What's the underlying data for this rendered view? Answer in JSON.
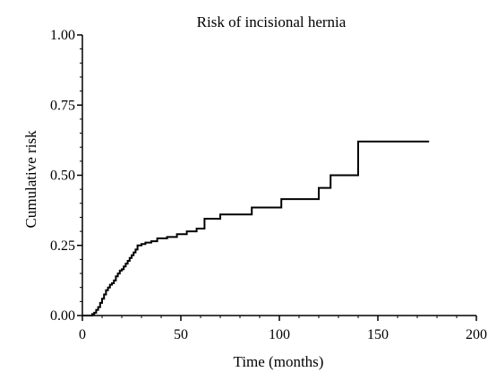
{
  "chart_data": {
    "type": "line",
    "step": true,
    "title": "Risk of incisional hernia",
    "xlabel": "Time (months)",
    "ylabel": "Cumulative risk",
    "xlim": [
      0,
      200
    ],
    "ylim": [
      0,
      1
    ],
    "x_ticks": [
      0,
      50,
      100,
      150,
      200
    ],
    "x_tick_labels": [
      "0",
      "50",
      "100",
      "150",
      "200"
    ],
    "y_ticks": [
      0,
      0.25,
      0.5,
      0.75,
      1.0
    ],
    "y_tick_labels": [
      "0.00",
      "0.25",
      "0.50",
      "0.75",
      "1.00"
    ],
    "x_minor_step": 10,
    "y_minor_step": 0.05,
    "grid": false,
    "legend": "none",
    "line_color": "#000000",
    "series": [
      {
        "x": [
          0,
          5,
          6,
          7,
          8,
          9,
          10,
          11,
          12,
          13,
          14,
          15,
          16,
          17,
          18,
          19,
          20,
          21,
          22,
          23,
          24,
          25,
          26,
          27,
          28,
          30,
          32,
          35,
          38,
          43,
          48,
          53,
          58,
          62,
          70,
          86,
          101,
          120,
          126,
          140,
          176
        ],
        "y": [
          0,
          0.005,
          0.01,
          0.02,
          0.03,
          0.045,
          0.06,
          0.075,
          0.09,
          0.1,
          0.11,
          0.115,
          0.125,
          0.14,
          0.15,
          0.16,
          0.165,
          0.175,
          0.185,
          0.195,
          0.205,
          0.215,
          0.225,
          0.235,
          0.25,
          0.255,
          0.26,
          0.265,
          0.275,
          0.28,
          0.29,
          0.3,
          0.31,
          0.345,
          0.36,
          0.385,
          0.415,
          0.455,
          0.5,
          0.62,
          0.62
        ]
      }
    ]
  }
}
